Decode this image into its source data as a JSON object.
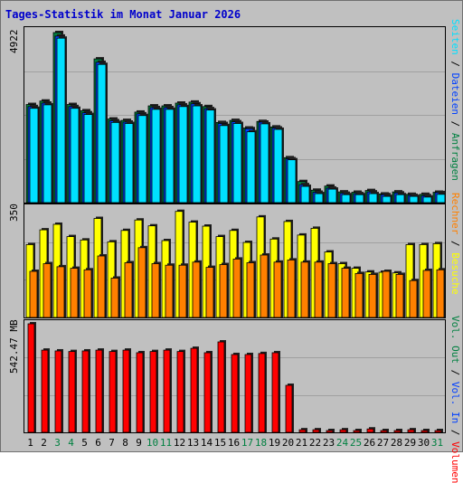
{
  "title": "Tages-Statistik im Monat Januar 2026",
  "colors": {
    "background": "#c0c0c0",
    "title": "#0000cc",
    "anfragen": "#008040",
    "dateien": "#0040ff",
    "seiten": "#00e0ff",
    "besuche": "#ffff00",
    "rechner": "#ff8000",
    "volumen": "#ff0000",
    "weekday_label": "#000000",
    "weekend_label": "#008040"
  },
  "chart_data": [
    {
      "type": "bar",
      "panel": "top",
      "ymax_label": "4922",
      "ylim": [
        0,
        4922
      ],
      "grid": true,
      "legend_position": "right",
      "categories": [
        "1",
        "2",
        "3",
        "4",
        "5",
        "6",
        "7",
        "8",
        "9",
        "10",
        "11",
        "12",
        "13",
        "14",
        "15",
        "16",
        "17",
        "18",
        "19",
        "20",
        "21",
        "22",
        "23",
        "24",
        "25",
        "26",
        "27",
        "28",
        "29",
        "30",
        "31"
      ],
      "series": [
        {
          "name": "Anfragen",
          "values": [
            2840,
            2940,
            4922,
            2840,
            2660,
            4160,
            2420,
            2380,
            2620,
            2800,
            2800,
            2880,
            2910,
            2780,
            2320,
            2380,
            2160,
            2350,
            2190,
            1300,
            610,
            360,
            480,
            310,
            300,
            350,
            250,
            310,
            240,
            240,
            300
          ]
        },
        {
          "name": "Dateien",
          "values": [
            2780,
            2880,
            4820,
            2780,
            2600,
            4060,
            2370,
            2330,
            2570,
            2750,
            2750,
            2830,
            2860,
            2720,
            2290,
            2340,
            2140,
            2330,
            2160,
            1270,
            520,
            300,
            420,
            270,
            260,
            310,
            230,
            280,
            210,
            200,
            290
          ]
        },
        {
          "name": "Seiten",
          "values": [
            2730,
            2830,
            4760,
            2730,
            2550,
            4000,
            2320,
            2290,
            2520,
            2700,
            2700,
            2780,
            2800,
            2680,
            2230,
            2290,
            2050,
            2280,
            2120,
            1240,
            470,
            260,
            390,
            230,
            230,
            260,
            180,
            230,
            180,
            160,
            240
          ]
        }
      ]
    },
    {
      "type": "bar",
      "panel": "middle",
      "ymax_label": "350",
      "ylim": [
        0,
        350
      ],
      "grid": true,
      "legend_position": "right",
      "categories": [
        "1",
        "2",
        "3",
        "4",
        "5",
        "6",
        "7",
        "8",
        "9",
        "10",
        "11",
        "12",
        "13",
        "14",
        "15",
        "16",
        "17",
        "18",
        "19",
        "20",
        "21",
        "22",
        "23",
        "24",
        "25",
        "26",
        "27",
        "28",
        "29",
        "30",
        "31"
      ],
      "series": [
        {
          "name": "Besuche",
          "values": [
            237,
            285,
            303,
            263,
            252,
            322,
            246,
            283,
            317,
            298,
            250,
            345,
            310,
            297,
            263,
            283,
            244,
            327,
            255,
            312,
            268,
            290,
            213,
            175,
            160,
            148,
            147,
            145,
            237,
            237,
            240
          ]
        },
        {
          "name": "Rechner",
          "values": [
            150,
            175,
            165,
            160,
            155,
            200,
            128,
            178,
            227,
            175,
            170,
            170,
            180,
            163,
            172,
            190,
            178,
            203,
            180,
            187,
            180,
            180,
            175,
            160,
            143,
            140,
            150,
            140,
            120,
            153,
            155
          ]
        }
      ]
    },
    {
      "type": "bar",
      "panel": "bottom",
      "ymax_label": "542.47 MB",
      "ylim": [
        0,
        542.47
      ],
      "grid": true,
      "legend_position": "right",
      "categories": [
        "1",
        "2",
        "3",
        "4",
        "5",
        "6",
        "7",
        "8",
        "9",
        "10",
        "11",
        "12",
        "13",
        "14",
        "15",
        "16",
        "17",
        "18",
        "19",
        "20",
        "21",
        "22",
        "23",
        "24",
        "25",
        "26",
        "27",
        "28",
        "29",
        "30",
        "31"
      ],
      "series": [
        {
          "name": "Volumen",
          "values": [
            542.47,
            411,
            407,
            404,
            407,
            411,
            404,
            411,
            398,
            404,
            411,
            404,
            420,
            398,
            452,
            389,
            389,
            394,
            398,
            235,
            13,
            13,
            8,
            13,
            8,
            17,
            8,
            8,
            13,
            8,
            8
          ]
        }
      ]
    }
  ],
  "legends": {
    "top": [
      "Anfragen",
      "Dateien",
      "Seiten"
    ],
    "middle": [
      "Besuche",
      "Rechner"
    ],
    "bottom": [
      "Volumen",
      "Vol. In",
      "Vol. Out"
    ]
  },
  "x_labels": [
    "1",
    "2",
    "3",
    "4",
    "5",
    "6",
    "7",
    "8",
    "9",
    "10",
    "11",
    "12",
    "13",
    "14",
    "15",
    "16",
    "17",
    "18",
    "19",
    "20",
    "21",
    "22",
    "23",
    "24",
    "25",
    "26",
    "27",
    "28",
    "29",
    "30",
    "31"
  ],
  "weekend_days": [
    "3",
    "4",
    "10",
    "11",
    "17",
    "18",
    "24",
    "25",
    "31"
  ]
}
